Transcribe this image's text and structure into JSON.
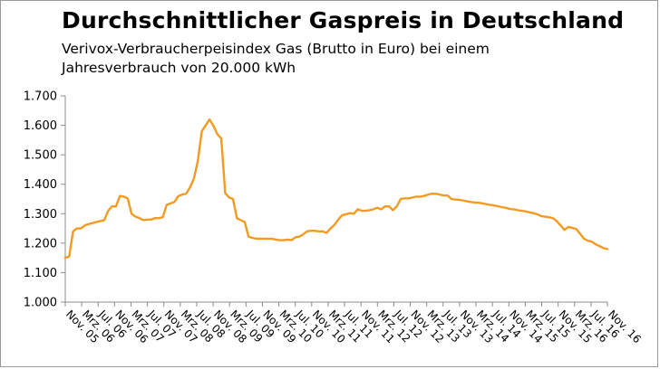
{
  "chart_data": {
    "type": "line",
    "title": "Durchschnittlicher Gaspreis in Deutschland",
    "subtitle": "Verivox-Verbraucherpeisindex Gas (Brutto in Euro) bei einem Jahresverbrauch von 20.000 kWh",
    "xlabel": "",
    "ylabel": "",
    "ylim": [
      1000,
      1700
    ],
    "yticks": [
      "1.000",
      "1.100",
      "1.200",
      "1.300",
      "1.400",
      "1.500",
      "1.600",
      "1.700"
    ],
    "x_tick_labels": [
      "Nov. 05",
      "Mrz. 06",
      "Jul. 06",
      "Nov. 06",
      "Mrz. 07",
      "Jul. 07",
      "Nov. 07",
      "Mrz. 08",
      "Jul. 08",
      "Nov. 08",
      "Mrz. 09",
      "Jul. 09",
      "Nov. 09",
      "Mrz. 10",
      "Jul. 10",
      "Nov. 10",
      "Mrz. 11",
      "Jul. 11",
      "Nov. 11",
      "Mrz. 12",
      "Jul. 12",
      "Nov. 12",
      "Mrz. 13",
      "Jul. 13",
      "Nov. 13",
      "Mrz. 14",
      "Jul. 14",
      "Nov. 14",
      "Mrz. 15",
      "Jul. 15",
      "Nov. 15",
      "Mrz. 16",
      "Jul. 16",
      "Nov. 16"
    ],
    "grid": false,
    "legend": "none",
    "line_color": "#F39A21",
    "series": [
      {
        "values": [
          1150,
          1155,
          1240,
          1250,
          1250,
          1260,
          1265,
          1268,
          1272,
          1275,
          1278,
          1310,
          1325,
          1325,
          1360,
          1358,
          1352,
          1300,
          1290,
          1285,
          1278,
          1280,
          1280,
          1285,
          1285,
          1288,
          1330,
          1335,
          1340,
          1360,
          1365,
          1368,
          1390,
          1420,
          1480,
          1580,
          1600,
          1620,
          1598,
          1570,
          1555,
          1370,
          1355,
          1350,
          1285,
          1278,
          1272,
          1222,
          1218,
          1215,
          1215,
          1215,
          1215,
          1215,
          1212,
          1210,
          1210,
          1212,
          1210,
          1220,
          1222,
          1230,
          1240,
          1242,
          1242,
          1240,
          1240,
          1235,
          1250,
          1262,
          1280,
          1295,
          1298,
          1302,
          1300,
          1315,
          1310,
          1310,
          1312,
          1315,
          1320,
          1315,
          1325,
          1325,
          1312,
          1325,
          1350,
          1352,
          1352,
          1355,
          1358,
          1358,
          1360,
          1365,
          1368,
          1368,
          1365,
          1362,
          1362,
          1350,
          1348,
          1347,
          1345,
          1342,
          1340,
          1338,
          1337,
          1335,
          1332,
          1330,
          1328,
          1325,
          1322,
          1320,
          1316,
          1315,
          1312,
          1310,
          1308,
          1305,
          1302,
          1298,
          1292,
          1290,
          1288,
          1285,
          1275,
          1260,
          1245,
          1255,
          1252,
          1248,
          1232,
          1215,
          1208,
          1205,
          1196,
          1190,
          1183,
          1180
        ]
      }
    ]
  }
}
